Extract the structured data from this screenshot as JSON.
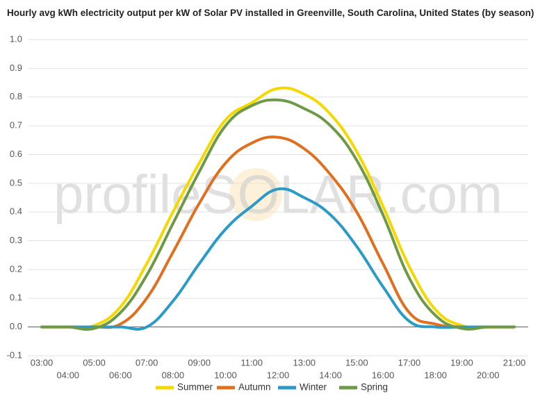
{
  "watermark": "profileSOLAR.com",
  "chart_data": {
    "type": "line",
    "title": "Hourly avg kWh electricity output per kW of Solar PV installed in Greenville, South Carolina, United States (by season)",
    "categories": [
      "03:00",
      "04:00",
      "05:00",
      "06:00",
      "07:00",
      "08:00",
      "09:00",
      "10:00",
      "11:00",
      "12:00",
      "13:00",
      "14:00",
      "15:00",
      "16:00",
      "17:00",
      "18:00",
      "19:00",
      "20:00",
      "21:00"
    ],
    "series": [
      {
        "name": "Summer",
        "color": "#f5d800",
        "values": [
          0,
          0,
          0.005,
          0.07,
          0.22,
          0.4,
          0.57,
          0.72,
          0.78,
          0.83,
          0.81,
          0.74,
          0.61,
          0.42,
          0.21,
          0.06,
          0.005,
          0,
          0
        ]
      },
      {
        "name": "Autumn",
        "color": "#e07020",
        "values": [
          0,
          0,
          0,
          0.01,
          0.1,
          0.26,
          0.43,
          0.57,
          0.64,
          0.66,
          0.62,
          0.53,
          0.4,
          0.22,
          0.05,
          0.01,
          0,
          0,
          0
        ]
      },
      {
        "name": "Winter",
        "color": "#2a9ac8",
        "values": [
          0,
          0,
          0,
          0,
          0,
          0.09,
          0.22,
          0.34,
          0.42,
          0.48,
          0.45,
          0.39,
          0.28,
          0.14,
          0.02,
          0,
          0,
          0,
          0
        ]
      },
      {
        "name": "Spring",
        "color": "#6e9a48",
        "values": [
          0,
          0,
          -0.005,
          0.05,
          0.18,
          0.36,
          0.54,
          0.7,
          0.77,
          0.79,
          0.76,
          0.7,
          0.58,
          0.39,
          0.17,
          0.04,
          -0.005,
          0,
          0
        ]
      }
    ],
    "ylim": [
      -0.1,
      1.0
    ],
    "yticks": [
      -0.1,
      {
        "value": 0,
        "label": "0.0"
      },
      0.1,
      0.2,
      0.3,
      0.4,
      0.5,
      0.6,
      0.7,
      0.8,
      0.9,
      {
        "value": 1,
        "label": "1.0"
      }
    ],
    "grid": true,
    "legend": "bottom"
  }
}
